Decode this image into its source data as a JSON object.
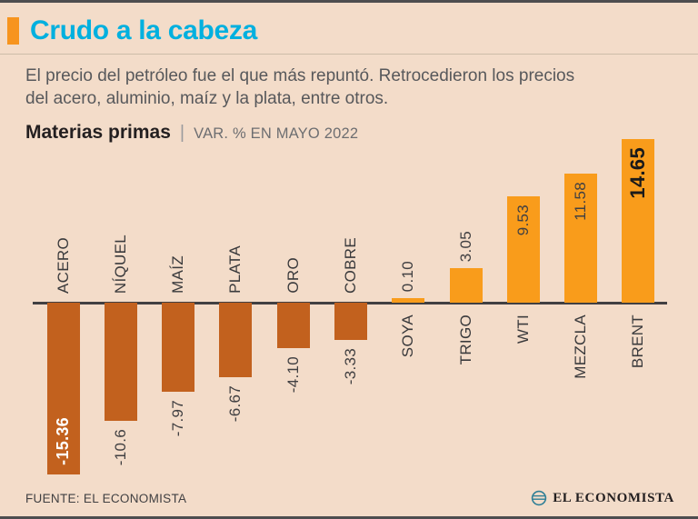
{
  "header": {
    "title": "Crudo a la cabeza",
    "subtitle_lines": [
      "El precio del petróleo fue el que más repuntó. Retrocedieron los precios",
      "del acero, aluminio, maíz y la plata, entre otros."
    ]
  },
  "chart_heading": {
    "title": "Materias primas",
    "separator": "|",
    "subtitle": "VAR. % EN MAYO 2022"
  },
  "chart_data": {
    "type": "bar",
    "title": "Materias primas | VAR. % EN MAYO 2022",
    "orientation": "vertical",
    "grid": false,
    "categories": [
      "ACERO",
      "NÍQUEL",
      "MAÍZ",
      "PLATA",
      "ORO",
      "COBRE",
      "SOYA",
      "TRIGO",
      "WTI",
      "MEZCLA",
      "BRENT"
    ],
    "values": [
      -15.36,
      -10.6,
      -7.97,
      -6.67,
      -4.1,
      -3.33,
      0.1,
      3.05,
      9.53,
      11.58,
      14.65
    ],
    "value_labels": [
      "-15.36",
      "-10.6",
      "-7.97",
      "-6.67",
      "-4.10",
      "-3.33",
      "0.10",
      "3.05",
      "9.53",
      "11.58",
      "14.65"
    ],
    "unit": "VAR. % EN MAYO 2022",
    "ylim": [
      -16,
      15
    ],
    "colors": {
      "positive": "#F99C1B",
      "negative": "#C2611E",
      "baseline": "#414042",
      "background": "#F3DCC9"
    }
  },
  "footer": {
    "source": "FUENTE: EL ECONOMISTA",
    "brand": "EL ECONOMISTA"
  },
  "colors": {
    "accent_cyan": "#00B0DF",
    "accent_orange": "#F7941E",
    "text_gray": "#57585B"
  }
}
